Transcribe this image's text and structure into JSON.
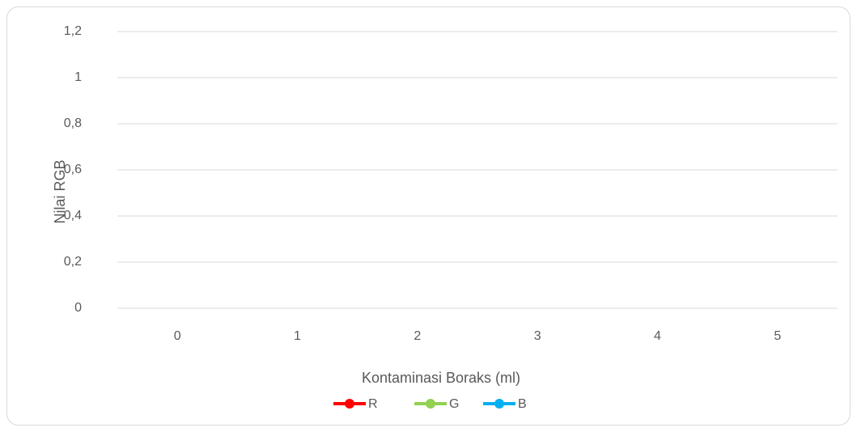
{
  "chart_data": {
    "type": "line",
    "x_label": "Kontaminasi Boraks (ml)",
    "y_label": "Nilai RGB",
    "categories": [
      "0",
      "1",
      "2",
      "3",
      "4",
      "5"
    ],
    "series": [
      {
        "name": "R",
        "color": "#ff0000",
        "values": [
          null,
          null,
          null,
          null,
          null,
          null
        ]
      },
      {
        "name": "G",
        "color": "#92d050",
        "values": [
          null,
          null,
          null,
          null,
          null,
          null
        ]
      },
      {
        "name": "B",
        "color": "#00b0f0",
        "values": [
          null,
          null,
          null,
          null,
          null,
          null
        ]
      }
    ],
    "ylim": [
      0,
      1.2
    ],
    "yticks": [
      0,
      {
        "value": 0.2,
        "label": "0,2"
      },
      {
        "value": 0.4,
        "label": "0,4"
      },
      {
        "value": 0.6,
        "label": "0,6"
      },
      {
        "value": 0.8,
        "label": "0,8"
      },
      1,
      {
        "value": 1.2,
        "label": "1,2"
      }
    ],
    "grid": true,
    "legend": "bottom"
  }
}
